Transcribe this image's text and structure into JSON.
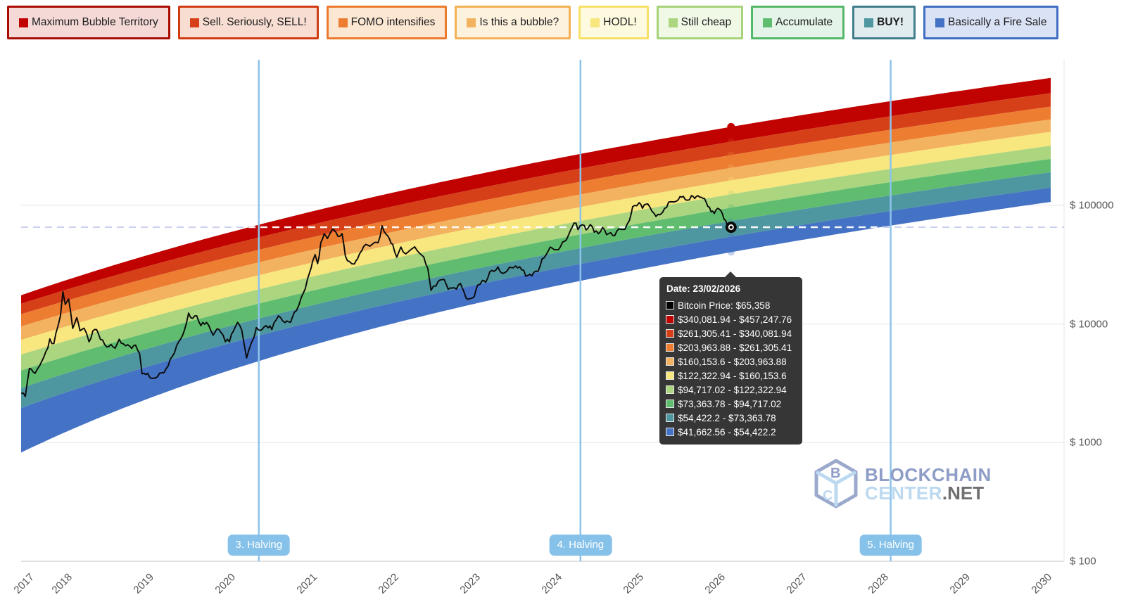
{
  "legend": {
    "items": [
      {
        "label": "Maximum Bubble Territory",
        "square": "#c00200",
        "bg": "#f4d9d7",
        "border": "#a90b01",
        "bold": false
      },
      {
        "label": "Sell. Seriously, SELL!",
        "square": "#d64018",
        "bg": "#f8ded2",
        "border": "#d03c12",
        "bold": false
      },
      {
        "label": "FOMO intensifies",
        "square": "#ed7d31",
        "bg": "#fce7d3",
        "border": "#ec7a2d",
        "bold": false
      },
      {
        "label": "Is this a bubble?",
        "square": "#f3b25f",
        "bg": "#fdf2de",
        "border": "#f3b156",
        "bold": false
      },
      {
        "label": "HODL!",
        "square": "#f8e67f",
        "bg": "#fefae0",
        "border": "#f6e068",
        "bold": false
      },
      {
        "label": "Still cheap",
        "square": "#abd57f",
        "bg": "#f0f8e6",
        "border": "#a6d378",
        "bold": false
      },
      {
        "label": "Accumulate",
        "square": "#60bd6f",
        "bg": "#e5f4e8",
        "border": "#54b868",
        "bold": false
      },
      {
        "label": "BUY!",
        "square": "#4f97a0",
        "bg": "#e0ecee",
        "border": "#417e8d",
        "bold": true
      },
      {
        "label": "Basically a Fire Sale",
        "square": "#4472c4",
        "bg": "#dae2f5",
        "border": "#3e6dc2",
        "bold": false
      }
    ]
  },
  "tooltip": {
    "title": "Date: 23/02/2026",
    "rows": [
      {
        "color": "#000000",
        "text": "Bitcoin Price: $65,358"
      },
      {
        "color": "#c00200",
        "text": "$340,081.94 - $457,247.76"
      },
      {
        "color": "#d64018",
        "text": "$261,305.41 - $340,081.94"
      },
      {
        "color": "#ed7d31",
        "text": "$203,963.88 - $261,305.41"
      },
      {
        "color": "#f3b25f",
        "text": "$160,153.6 - $203,963.88"
      },
      {
        "color": "#f8e67f",
        "text": "$122,322.94 - $160,153.6"
      },
      {
        "color": "#abd57f",
        "text": "$94,717.02 - $122,322.94"
      },
      {
        "color": "#60bd6f",
        "text": "$73,363.78 - $94,717.02"
      },
      {
        "color": "#4f97a0",
        "text": "$54,422.2 - $73,363.78"
      },
      {
        "color": "#4472c4",
        "text": "$41,662.56 - $54,422.2"
      }
    ]
  },
  "halvings": [
    {
      "label": "3. Halving",
      "year": 2020.36
    },
    {
      "label": "4. Halving",
      "year": 2024.3
    },
    {
      "label": "5. Halving",
      "year": 2028.1
    }
  ],
  "logo": {
    "line1": "BLOCKCHAIN",
    "line2a": "CENTER",
    "line2b": ".NET",
    "cube_b": "B",
    "cube_c": "C"
  },
  "colors": {
    "halving_line": "#8cc3ec",
    "halving_pill": "#85c1e9",
    "grid": "#e6e6e6",
    "axis": "#d5d5d5",
    "dashed_out": "#c9cfee",
    "dashed_in": "#ffffff",
    "price_line": "#0a0a0a"
  },
  "chart_data": {
    "type": "area+line",
    "title": "",
    "y_axis": {
      "scale": "log",
      "ticks": [
        100,
        1000,
        10000,
        100000
      ],
      "tick_labels": [
        "$ 100",
        "$ 1000",
        "$ 10000",
        "$ 100000"
      ]
    },
    "x_axis": {
      "years": [
        "2017",
        "2018",
        "2019",
        "2020",
        "2021",
        "2022",
        "2023",
        "2024",
        "2025",
        "2026",
        "2027",
        "2028",
        "2029",
        "2030"
      ]
    },
    "legend_position": "top",
    "grid": true,
    "bands": [
      {
        "name": "Maximum Bubble Territory",
        "color": "#c00200",
        "range_at_hover": [
          340081.94,
          457247.76
        ]
      },
      {
        "name": "Sell. Seriously, SELL!",
        "color": "#d64018",
        "range_at_hover": [
          261305.41,
          340081.94
        ]
      },
      {
        "name": "FOMO intensifies",
        "color": "#ed7d31",
        "range_at_hover": [
          203963.88,
          261305.41
        ]
      },
      {
        "name": "Is this a bubble?",
        "color": "#f3b25f",
        "range_at_hover": [
          160153.6,
          203963.88
        ]
      },
      {
        "name": "HODL!",
        "color": "#f8e67f",
        "range_at_hover": [
          122322.94,
          160153.6
        ]
      },
      {
        "name": "Still cheap",
        "color": "#abd57f",
        "range_at_hover": [
          94717.02,
          122322.94
        ]
      },
      {
        "name": "Accumulate",
        "color": "#60bd6f",
        "range_at_hover": [
          73363.78,
          94717.02
        ]
      },
      {
        "name": "BUY!",
        "color": "#4f97a0",
        "range_at_hover": [
          54422.2,
          73363.78
        ]
      },
      {
        "name": "Basically a Fire Sale",
        "color": "#4472c4",
        "range_at_hover": [
          41662.56,
          54422.2
        ]
      }
    ],
    "hover": {
      "date": "23/02/2026",
      "x_year": 2026.145,
      "bitcoin_price": 65358
    },
    "bitcoin_price_series": [
      [
        2017.45,
        2600
      ],
      [
        2017.5,
        2500
      ],
      [
        2017.55,
        4300
      ],
      [
        2017.62,
        3950
      ],
      [
        2017.7,
        4900
      ],
      [
        2017.75,
        5700
      ],
      [
        2017.8,
        7300
      ],
      [
        2017.85,
        6700
      ],
      [
        2017.9,
        9900
      ],
      [
        2017.93,
        11500
      ],
      [
        2017.96,
        19000
      ],
      [
        2017.99,
        14200
      ],
      [
        2018.03,
        16600
      ],
      [
        2018.08,
        9200
      ],
      [
        2018.13,
        11300
      ],
      [
        2018.17,
        8500
      ],
      [
        2018.22,
        9300
      ],
      [
        2018.28,
        7000
      ],
      [
        2018.35,
        9300
      ],
      [
        2018.42,
        7600
      ],
      [
        2018.5,
        6300
      ],
      [
        2018.55,
        6700
      ],
      [
        2018.6,
        6300
      ],
      [
        2018.65,
        7300
      ],
      [
        2018.7,
        6600
      ],
      [
        2018.78,
        6400
      ],
      [
        2018.85,
        6450
      ],
      [
        2018.9,
        5600
      ],
      [
        2018.93,
        3900
      ],
      [
        2019.0,
        3750
      ],
      [
        2019.05,
        3500
      ],
      [
        2019.12,
        3650
      ],
      [
        2019.2,
        4000
      ],
      [
        2019.3,
        5200
      ],
      [
        2019.38,
        7200
      ],
      [
        2019.45,
        8800
      ],
      [
        2019.5,
        12700
      ],
      [
        2019.55,
        10800
      ],
      [
        2019.6,
        11900
      ],
      [
        2019.65,
        9800
      ],
      [
        2019.72,
        10300
      ],
      [
        2019.8,
        8300
      ],
      [
        2019.87,
        9200
      ],
      [
        2019.95,
        7300
      ],
      [
        2020.0,
        7200
      ],
      [
        2020.05,
        8800
      ],
      [
        2020.1,
        10200
      ],
      [
        2020.15,
        9100
      ],
      [
        2020.21,
        5100
      ],
      [
        2020.27,
        6800
      ],
      [
        2020.33,
        9100
      ],
      [
        2020.38,
        8800
      ],
      [
        2020.45,
        9600
      ],
      [
        2020.52,
        9200
      ],
      [
        2020.6,
        11600
      ],
      [
        2020.68,
        10500
      ],
      [
        2020.75,
        10700
      ],
      [
        2020.82,
        13200
      ],
      [
        2020.88,
        16500
      ],
      [
        2020.93,
        19500
      ],
      [
        2020.98,
        27000
      ],
      [
        2021.02,
        33500
      ],
      [
        2021.05,
        38500
      ],
      [
        2021.08,
        31500
      ],
      [
        2021.12,
        47000
      ],
      [
        2021.16,
        57500
      ],
      [
        2021.2,
        52000
      ],
      [
        2021.24,
        58500
      ],
      [
        2021.28,
        63000
      ],
      [
        2021.33,
        54000
      ],
      [
        2021.38,
        57500
      ],
      [
        2021.42,
        36500
      ],
      [
        2021.47,
        33000
      ],
      [
        2021.53,
        31800
      ],
      [
        2021.57,
        34500
      ],
      [
        2021.62,
        42000
      ],
      [
        2021.67,
        47500
      ],
      [
        2021.72,
        44500
      ],
      [
        2021.78,
        49500
      ],
      [
        2021.82,
        47000
      ],
      [
        2021.87,
        66500
      ],
      [
        2021.92,
        57000
      ],
      [
        2021.96,
        50500
      ],
      [
        2022.0,
        46500
      ],
      [
        2022.05,
        36500
      ],
      [
        2022.1,
        44000
      ],
      [
        2022.16,
        39000
      ],
      [
        2022.22,
        42500
      ],
      [
        2022.27,
        46000
      ],
      [
        2022.33,
        39500
      ],
      [
        2022.38,
        36000
      ],
      [
        2022.43,
        29500
      ],
      [
        2022.47,
        19500
      ],
      [
        2022.53,
        21500
      ],
      [
        2022.58,
        23500
      ],
      [
        2022.63,
        24500
      ],
      [
        2022.68,
        20000
      ],
      [
        2022.73,
        19500
      ],
      [
        2022.78,
        20000
      ],
      [
        2022.83,
        21500
      ],
      [
        2022.87,
        19000
      ],
      [
        2022.9,
        16200
      ],
      [
        2022.95,
        16800
      ],
      [
        2023.0,
        16600
      ],
      [
        2023.04,
        21200
      ],
      [
        2023.1,
        23200
      ],
      [
        2023.14,
        21900
      ],
      [
        2023.19,
        28200
      ],
      [
        2023.24,
        27700
      ],
      [
        2023.29,
        29300
      ],
      [
        2023.33,
        26700
      ],
      [
        2023.38,
        27200
      ],
      [
        2023.43,
        30200
      ],
      [
        2023.48,
        29900
      ],
      [
        2023.53,
        30500
      ],
      [
        2023.58,
        29200
      ],
      [
        2023.63,
        25900
      ],
      [
        2023.68,
        26100
      ],
      [
        2023.73,
        26500
      ],
      [
        2023.78,
        27600
      ],
      [
        2023.83,
        34400
      ],
      [
        2023.88,
        37500
      ],
      [
        2023.93,
        43500
      ],
      [
        2023.98,
        42200
      ],
      [
        2024.03,
        42800
      ],
      [
        2024.08,
        47500
      ],
      [
        2024.13,
        52000
      ],
      [
        2024.18,
        62500
      ],
      [
        2024.22,
        73000
      ],
      [
        2024.27,
        64500
      ],
      [
        2024.32,
        70500
      ],
      [
        2024.37,
        63800
      ],
      [
        2024.42,
        67000
      ],
      [
        2024.47,
        61500
      ],
      [
        2024.52,
        57000
      ],
      [
        2024.57,
        65000
      ],
      [
        2024.62,
        57500
      ],
      [
        2024.67,
        59000
      ],
      [
        2024.72,
        54500
      ],
      [
        2024.77,
        64000
      ],
      [
        2024.82,
        61000
      ],
      [
        2024.87,
        68000
      ],
      [
        2024.9,
        75500
      ],
      [
        2024.94,
        98000
      ],
      [
        2024.99,
        97500
      ],
      [
        2025.02,
        104500
      ],
      [
        2025.06,
        94500
      ],
      [
        2025.1,
        102500
      ],
      [
        2025.15,
        97000
      ],
      [
        2025.2,
        84500
      ],
      [
        2025.25,
        82000
      ],
      [
        2025.29,
        87500
      ],
      [
        2025.33,
        94500
      ],
      [
        2025.38,
        104000
      ],
      [
        2025.43,
        103500
      ],
      [
        2025.48,
        108500
      ],
      [
        2025.52,
        119500
      ],
      [
        2025.56,
        116000
      ],
      [
        2025.61,
        112000
      ],
      [
        2025.66,
        118500
      ],
      [
        2025.7,
        116500
      ],
      [
        2025.74,
        123500
      ],
      [
        2025.78,
        114500
      ],
      [
        2025.82,
        110500
      ],
      [
        2025.86,
        96500
      ],
      [
        2025.9,
        91000
      ],
      [
        2025.94,
        87500
      ],
      [
        2025.98,
        93500
      ],
      [
        2026.02,
        89000
      ],
      [
        2026.06,
        78500
      ],
      [
        2026.1,
        67500
      ],
      [
        2026.145,
        65358
      ]
    ]
  }
}
